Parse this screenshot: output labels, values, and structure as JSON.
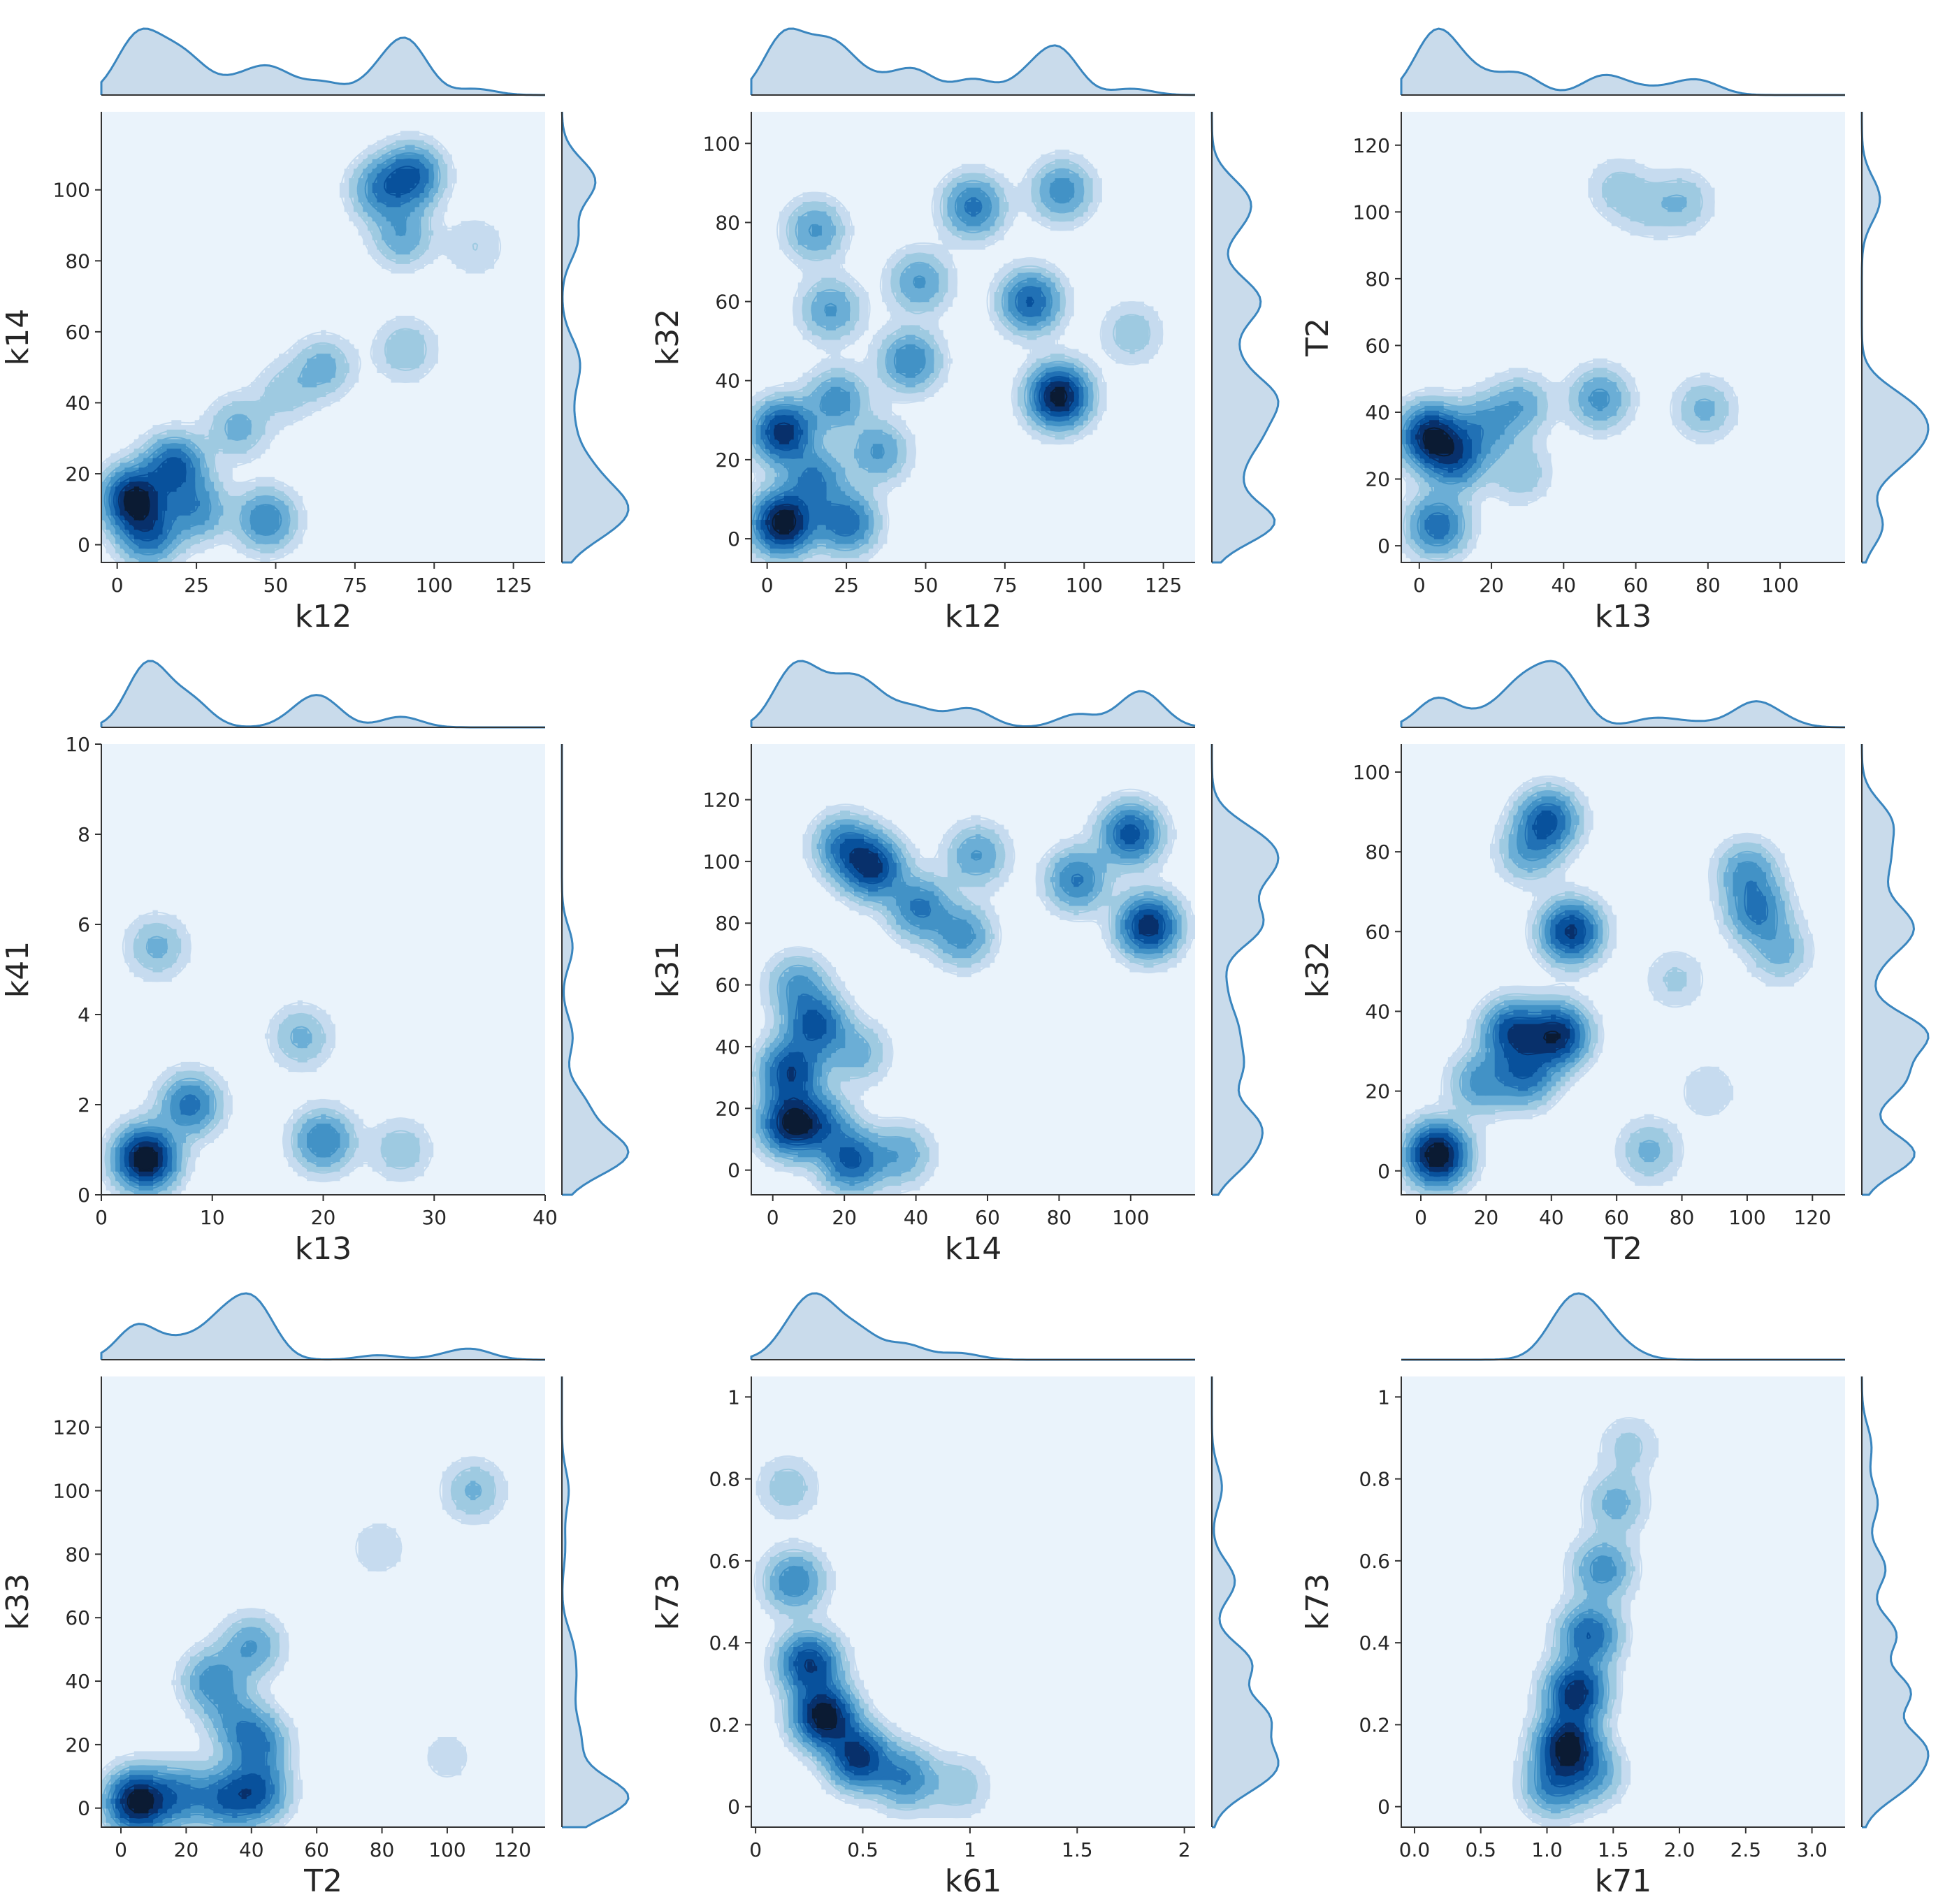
{
  "figure": {
    "background": "#ffffff",
    "plot_background": "#eaf3fb",
    "line_color": "#3a86bf",
    "marginal_fill": "#c9dbeb"
  },
  "chart_data": [
    {
      "type": "kde2d",
      "xlabel": "k12",
      "ylabel": "k14",
      "xlim": [
        -5,
        135
      ],
      "ylim": [
        -5,
        122
      ],
      "xticks": [
        0,
        25,
        50,
        75,
        100,
        125
      ],
      "yticks": [
        0,
        20,
        40,
        60,
        80,
        100
      ],
      "modes": [
        {
          "x": 5,
          "y": 13,
          "w": 1.0
        },
        {
          "x": 18,
          "y": 22,
          "w": 0.7
        },
        {
          "x": 10,
          "y": 3,
          "w": 0.6
        },
        {
          "x": 25,
          "y": 10,
          "w": 0.45
        },
        {
          "x": 47,
          "y": 7,
          "w": 0.5
        },
        {
          "x": 38,
          "y": 33,
          "w": 0.3
        },
        {
          "x": 65,
          "y": 50,
          "w": 0.3
        },
        {
          "x": 53,
          "y": 43,
          "w": 0.2
        },
        {
          "x": 93,
          "y": 104,
          "w": 0.65
        },
        {
          "x": 83,
          "y": 100,
          "w": 0.45
        },
        {
          "x": 90,
          "y": 87,
          "w": 0.35
        },
        {
          "x": 91,
          "y": 55,
          "w": 0.25
        },
        {
          "x": 113,
          "y": 84,
          "w": 0.15
        }
      ]
    },
    {
      "type": "kde2d",
      "xlabel": "k12",
      "ylabel": "k32",
      "xlim": [
        -5,
        135
      ],
      "ylim": [
        -6,
        108
      ],
      "xticks": [
        0,
        25,
        50,
        75,
        100,
        125
      ],
      "yticks": [
        0,
        20,
        40,
        60,
        80,
        100
      ],
      "modes": [
        {
          "x": 5,
          "y": 4,
          "w": 1.0
        },
        {
          "x": 5,
          "y": 27,
          "w": 0.8
        },
        {
          "x": 25,
          "y": 4,
          "w": 0.55
        },
        {
          "x": 15,
          "y": 15,
          "w": 0.45
        },
        {
          "x": 22,
          "y": 35,
          "w": 0.4
        },
        {
          "x": 15,
          "y": 78,
          "w": 0.35
        },
        {
          "x": 20,
          "y": 58,
          "w": 0.35
        },
        {
          "x": 45,
          "y": 45,
          "w": 0.45
        },
        {
          "x": 48,
          "y": 65,
          "w": 0.35
        },
        {
          "x": 65,
          "y": 84,
          "w": 0.5
        },
        {
          "x": 83,
          "y": 60,
          "w": 0.6
        },
        {
          "x": 92,
          "y": 36,
          "w": 0.95
        },
        {
          "x": 93,
          "y": 88,
          "w": 0.4
        },
        {
          "x": 115,
          "y": 52,
          "w": 0.2
        },
        {
          "x": 35,
          "y": 22,
          "w": 0.35
        }
      ]
    },
    {
      "type": "kde2d",
      "xlabel": "k13",
      "ylabel": "T2",
      "xlim": [
        -5,
        118
      ],
      "ylim": [
        -5,
        130
      ],
      "xticks": [
        0,
        20,
        40,
        60,
        80,
        100
      ],
      "yticks": [
        0,
        20,
        40,
        60,
        80,
        100,
        120
      ],
      "modes": [
        {
          "x": 3,
          "y": 33,
          "w": 1.0
        },
        {
          "x": 10,
          "y": 26,
          "w": 0.65
        },
        {
          "x": 5,
          "y": 6,
          "w": 0.65
        },
        {
          "x": 18,
          "y": 36,
          "w": 0.4
        },
        {
          "x": 28,
          "y": 42,
          "w": 0.35
        },
        {
          "x": 28,
          "y": 22,
          "w": 0.25
        },
        {
          "x": 50,
          "y": 44,
          "w": 0.45
        },
        {
          "x": 79,
          "y": 41,
          "w": 0.3
        },
        {
          "x": 73,
          "y": 103,
          "w": 0.25
        },
        {
          "x": 55,
          "y": 107,
          "w": 0.2
        },
        {
          "x": 63,
          "y": 101,
          "w": 0.15
        }
      ]
    },
    {
      "type": "kde2d",
      "xlabel": "k13",
      "ylabel": "k41",
      "xlim": [
        0,
        40
      ],
      "ylim": [
        0,
        10
      ],
      "xticks": [
        0,
        10,
        20,
        30,
        40
      ],
      "yticks": [
        0,
        2,
        4,
        6,
        8,
        10
      ],
      "modes": [
        {
          "x": 4,
          "y": 0.8,
          "w": 1.0
        },
        {
          "x": 8,
          "y": 2.0,
          "w": 0.5
        },
        {
          "x": 20,
          "y": 1.2,
          "w": 0.45
        },
        {
          "x": 18,
          "y": 3.5,
          "w": 0.25
        },
        {
          "x": 5,
          "y": 5.5,
          "w": 0.25
        },
        {
          "x": 27,
          "y": 1.0,
          "w": 0.2
        }
      ]
    },
    {
      "type": "kde2d",
      "xlabel": "k14",
      "ylabel": "k31",
      "xlim": [
        -6,
        118
      ],
      "ylim": [
        -8,
        138
      ],
      "xticks": [
        0,
        20,
        40,
        60,
        80,
        100
      ],
      "yticks": [
        0,
        20,
        40,
        60,
        80,
        100,
        120
      ],
      "modes": [
        {
          "x": 5,
          "y": 15,
          "w": 1.0
        },
        {
          "x": 5,
          "y": 32,
          "w": 0.8
        },
        {
          "x": 12,
          "y": 47,
          "w": 0.7
        },
        {
          "x": 7,
          "y": 60,
          "w": 0.4
        },
        {
          "x": 22,
          "y": 3,
          "w": 0.7
        },
        {
          "x": 14,
          "y": 15,
          "w": 0.45
        },
        {
          "x": 36,
          "y": 5,
          "w": 0.35
        },
        {
          "x": 28,
          "y": 98,
          "w": 0.85
        },
        {
          "x": 20,
          "y": 105,
          "w": 0.55
        },
        {
          "x": 41,
          "y": 85,
          "w": 0.55
        },
        {
          "x": 53,
          "y": 76,
          "w": 0.45
        },
        {
          "x": 57,
          "y": 102,
          "w": 0.4
        },
        {
          "x": 85,
          "y": 94,
          "w": 0.55
        },
        {
          "x": 100,
          "y": 109,
          "w": 0.75
        },
        {
          "x": 105,
          "y": 79,
          "w": 0.95
        },
        {
          "x": 24,
          "y": 38,
          "w": 0.3
        }
      ]
    },
    {
      "type": "kde2d",
      "xlabel": "T2",
      "ylabel": "k32",
      "xlim": [
        -6,
        130
      ],
      "ylim": [
        -6,
        107
      ],
      "xticks": [
        0,
        20,
        40,
        60,
        80,
        100,
        120
      ],
      "yticks": [
        0,
        20,
        40,
        60,
        80,
        100
      ],
      "modes": [
        {
          "x": 5,
          "y": 4,
          "w": 1.0
        },
        {
          "x": 42,
          "y": 34,
          "w": 0.8
        },
        {
          "x": 28,
          "y": 35,
          "w": 0.65
        },
        {
          "x": 32,
          "y": 24,
          "w": 0.5
        },
        {
          "x": 18,
          "y": 22,
          "w": 0.35
        },
        {
          "x": 46,
          "y": 60,
          "w": 0.75
        },
        {
          "x": 39,
          "y": 88,
          "w": 0.6
        },
        {
          "x": 33,
          "y": 80,
          "w": 0.3
        },
        {
          "x": 103,
          "y": 65,
          "w": 0.45
        },
        {
          "x": 100,
          "y": 75,
          "w": 0.35
        },
        {
          "x": 110,
          "y": 55,
          "w": 0.25
        },
        {
          "x": 70,
          "y": 5,
          "w": 0.25
        },
        {
          "x": 78,
          "y": 48,
          "w": 0.15
        },
        {
          "x": 88,
          "y": 20,
          "w": 0.12
        }
      ]
    },
    {
      "type": "kde2d",
      "xlabel": "T2",
      "ylabel": "k33",
      "xlim": [
        -6,
        130
      ],
      "ylim": [
        -6,
        136
      ],
      "xticks": [
        0,
        20,
        40,
        60,
        80,
        100,
        120
      ],
      "yticks": [
        0,
        20,
        40,
        60,
        80,
        100,
        120
      ],
      "modes": [
        {
          "x": 5,
          "y": 2,
          "w": 1.0
        },
        {
          "x": 18,
          "y": 4,
          "w": 0.45
        },
        {
          "x": 32,
          "y": 3,
          "w": 0.5
        },
        {
          "x": 42,
          "y": 5,
          "w": 0.55
        },
        {
          "x": 42,
          "y": 20,
          "w": 0.45
        },
        {
          "x": 28,
          "y": 40,
          "w": 0.4
        },
        {
          "x": 40,
          "y": 51,
          "w": 0.35
        },
        {
          "x": 35,
          "y": 28,
          "w": 0.3
        },
        {
          "x": 108,
          "y": 100,
          "w": 0.25
        },
        {
          "x": 79,
          "y": 82,
          "w": 0.12
        },
        {
          "x": 100,
          "y": 16,
          "w": 0.1
        }
      ]
    },
    {
      "type": "kde2d",
      "xlabel": "k61",
      "ylabel": "k73",
      "xlim": [
        -0.02,
        2.05
      ],
      "ylim": [
        -0.05,
        1.05
      ],
      "xticks": [
        0.0,
        0.5,
        1.0,
        1.5,
        2.0
      ],
      "yticks": [
        0.0,
        0.2,
        0.4,
        0.6,
        0.8,
        1.0
      ],
      "modes": [
        {
          "x": 0.32,
          "y": 0.22,
          "w": 1.0
        },
        {
          "x": 0.48,
          "y": 0.12,
          "w": 0.8
        },
        {
          "x": 0.25,
          "y": 0.35,
          "w": 0.75
        },
        {
          "x": 0.18,
          "y": 0.55,
          "w": 0.45
        },
        {
          "x": 0.15,
          "y": 0.78,
          "w": 0.2
        },
        {
          "x": 0.7,
          "y": 0.07,
          "w": 0.45
        },
        {
          "x": 0.95,
          "y": 0.05,
          "w": 0.2
        }
      ]
    },
    {
      "type": "kde2d",
      "xlabel": "k71",
      "ylabel": "k73",
      "xlim": [
        -0.1,
        3.25
      ],
      "ylim": [
        -0.05,
        1.05
      ],
      "xticks": [
        "0.0",
        "0.5",
        "1.0",
        "1.5",
        "2.0",
        "2.5",
        "3.0"
      ],
      "yticks": [
        0.0,
        0.2,
        0.4,
        0.6,
        0.8,
        1.0
      ],
      "modes": [
        {
          "x": 1.15,
          "y": 0.15,
          "w": 1.0
        },
        {
          "x": 1.22,
          "y": 0.28,
          "w": 0.9
        },
        {
          "x": 1.32,
          "y": 0.42,
          "w": 0.65
        },
        {
          "x": 1.42,
          "y": 0.58,
          "w": 0.45
        },
        {
          "x": 1.52,
          "y": 0.74,
          "w": 0.3
        },
        {
          "x": 1.62,
          "y": 0.88,
          "w": 0.18
        },
        {
          "x": 1.05,
          "y": 0.05,
          "w": 0.5
        },
        {
          "x": 1.35,
          "y": 0.08,
          "w": 0.35
        }
      ]
    }
  ]
}
